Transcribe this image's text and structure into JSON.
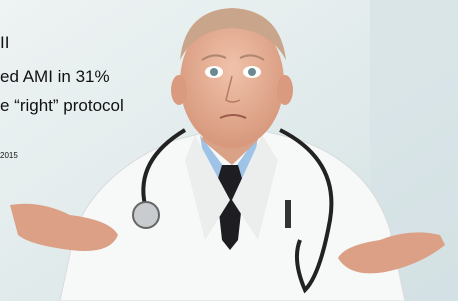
{
  "slide": {
    "lines": [
      "II",
      "ed AMI in 31%",
      "e “right” protocol"
    ],
    "citation": "2015"
  }
}
